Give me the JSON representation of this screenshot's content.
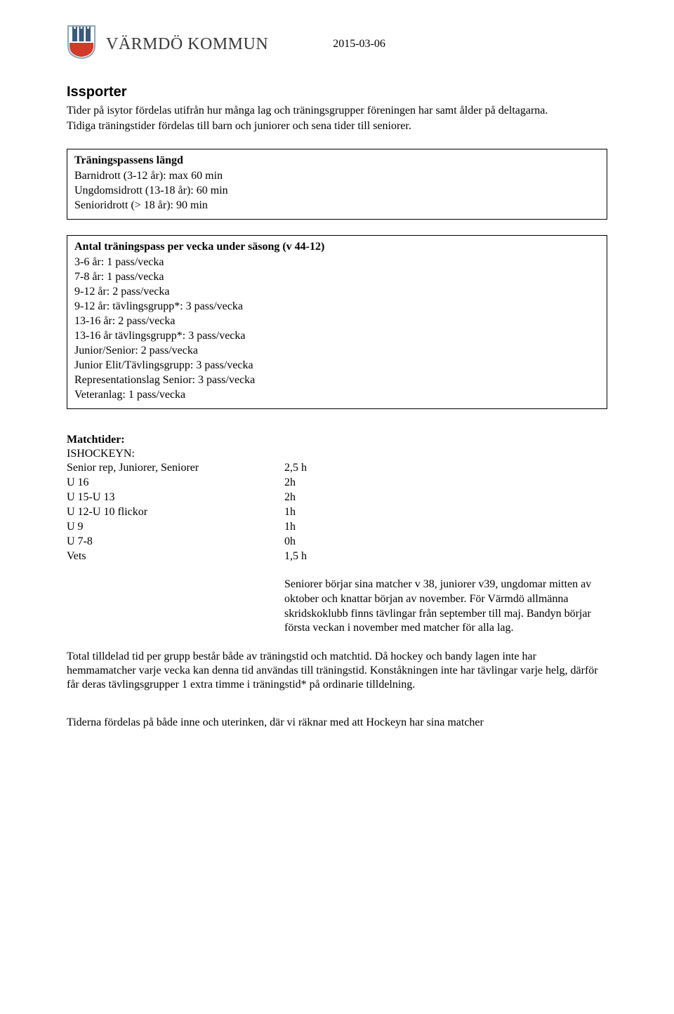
{
  "header": {
    "org_name": "VÄRMDÖ KOMMUN",
    "date": "2015-03-06",
    "logo": {
      "shield_border": "#99a7b3",
      "shield_fill": "#ffffff",
      "tower_color": "#3a5a7a",
      "base_color": "#d23a2a"
    }
  },
  "title": "Issporter",
  "intro": {
    "line1": "Tider på isytor fördelas utifrån hur många lag och träningsgrupper föreningen har samt ålder på deltagarna.",
    "line2": "Tidiga träningstider fördelas till barn och juniorer och sena tider till seniorer."
  },
  "box1": {
    "title": "Träningspassens längd",
    "lines": [
      "Barnidrott (3-12 år): max 60 min",
      "Ungdomsidrott (13-18 år): 60 min",
      "Senioridrott (> 18 år): 90 min"
    ]
  },
  "box2": {
    "title": "Antal träningspass per vecka under säsong (v 44-12)",
    "lines": [
      "3-6 år: 1 pass/vecka",
      "7-8 år: 1 pass/vecka",
      "9-12 år: 2 pass/vecka",
      "9-12 år: tävlingsgrupp*: 3 pass/vecka",
      "13-16 år: 2 pass/vecka",
      "13-16 år tävlingsgrupp*: 3 pass/vecka",
      "Junior/Senior: 2 pass/vecka",
      "Junior Elit/Tävlingsgrupp: 3 pass/vecka",
      "Representationslag Senior: 3 pass/vecka",
      "Veteranlag: 1 pass/vecka"
    ]
  },
  "matchtider": {
    "heading": "Matchtider:",
    "subheading": "ISHOCKEYN:",
    "rows": [
      {
        "label": "Senior rep, Juniorer, Seniorer",
        "value": "2,5 h"
      },
      {
        "label": "U 16",
        "value": "2h"
      },
      {
        "label": "U 15-U 13",
        "value": "2h"
      },
      {
        "label": "U 12-U 10 flickor",
        "value": "1h"
      },
      {
        "label": "U 9",
        "value": "1h"
      },
      {
        "label": "U 7-8",
        "value": "0h"
      },
      {
        "label": "Vets",
        "value": "1,5 h"
      }
    ]
  },
  "indent_para": "Seniorer börjar sina matcher v 38, juniorer v39, ungdomar mitten av oktober och knattar början av november. För Värmdö allmänna skridskoklubb finns tävlingar från september till maj. Bandyn börjar första veckan i november med matcher för alla lag.",
  "para_total": "Total tilldelad tid per grupp består både av träningstid och matchtid. Då hockey och bandy lagen inte har hemmamatcher varje vecka kan denna tid användas till träningstid. Konståkningen inte har tävlingar varje helg, därför får deras tävlingsgrupper 1 extra timme i träningstid* på ordinarie tilldelning.",
  "para_bottom": "Tiderna fördelas på både inne och uterinken, där vi räknar med att Hockeyn har sina matcher"
}
